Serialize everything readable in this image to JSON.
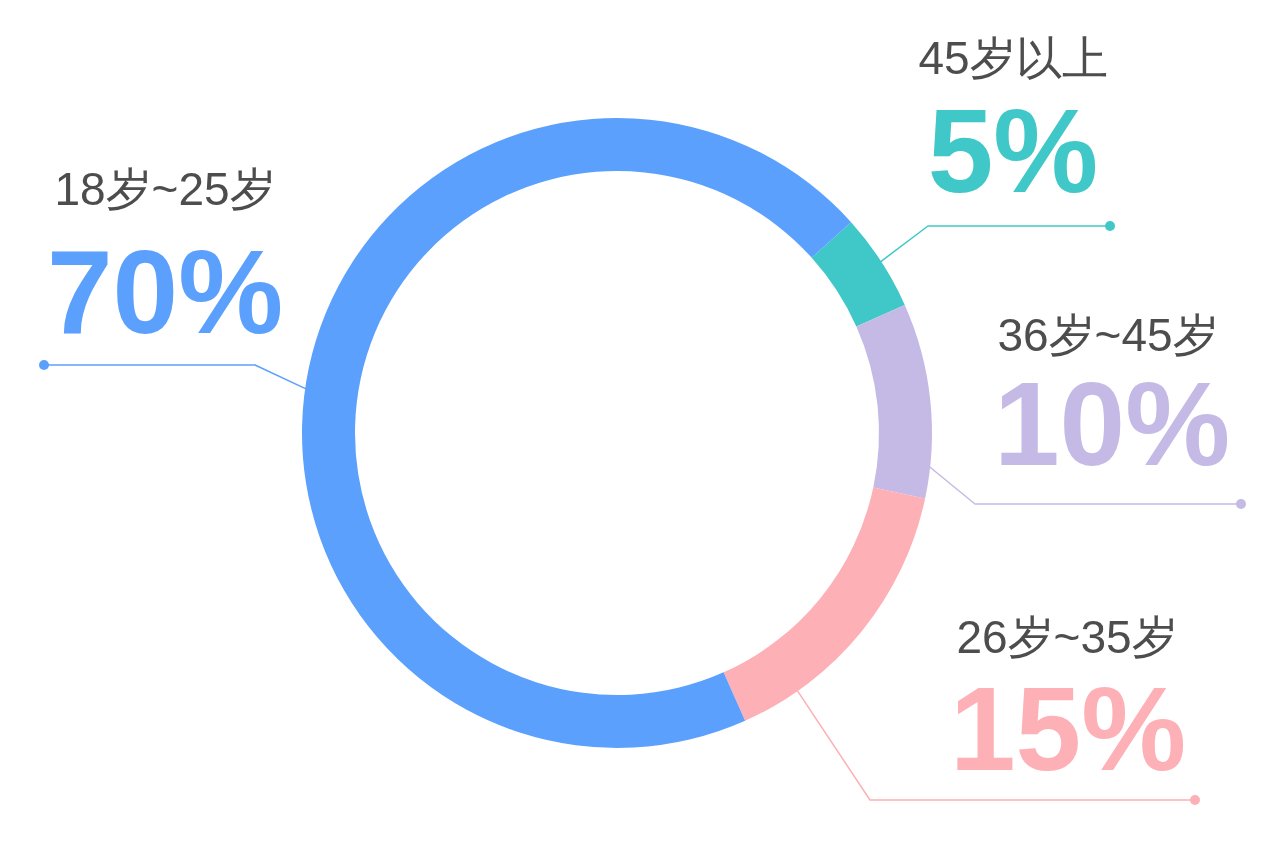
{
  "chart_data": {
    "type": "donut",
    "categories": [
      "45岁以上",
      "36岁~45岁",
      "26岁~35岁",
      "18岁~25岁"
    ],
    "values": [
      5,
      10,
      15,
      70
    ],
    "colors": [
      "#40c7c7",
      "#c5b9e6",
      "#fdb0b5",
      "#5ca0fd"
    ],
    "value_labels": [
      "5%",
      "10%",
      "15%",
      "70%"
    ]
  }
}
